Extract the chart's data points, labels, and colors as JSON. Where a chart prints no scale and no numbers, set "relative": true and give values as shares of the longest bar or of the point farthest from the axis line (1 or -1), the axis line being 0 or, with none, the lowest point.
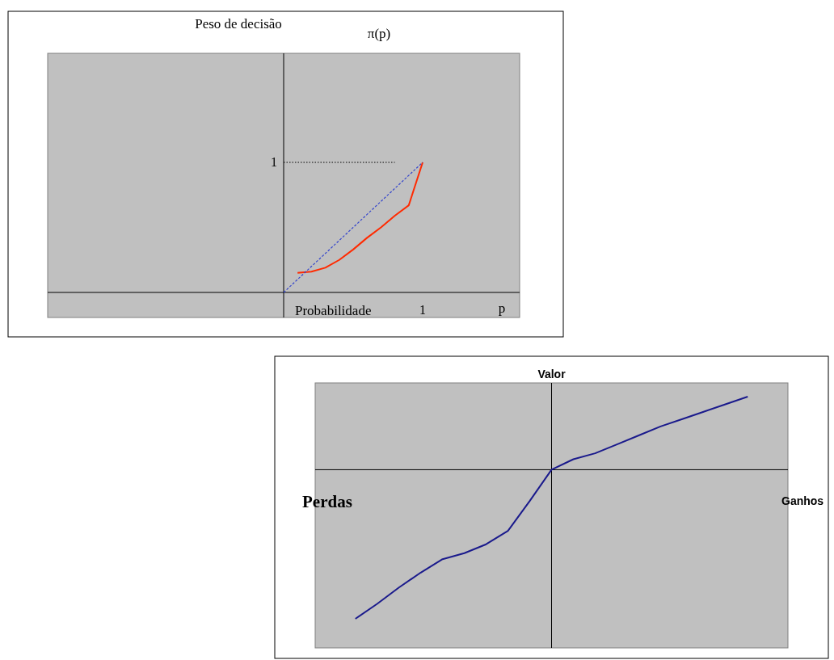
{
  "chart_data": [
    {
      "type": "line",
      "relative": true,
      "title": "Peso de decisão",
      "ylabel": "π(p)",
      "xlabel": "Probabilidade",
      "x2label": "p",
      "annotations": [
        "1",
        "1"
      ],
      "marker": "none",
      "categories": [
        null,
        null,
        null,
        null,
        null,
        null,
        null,
        null,
        null,
        null,
        null
      ],
      "series": [
        {
          "values": [
            null,
            0.15,
            0.16,
            0.19,
            0.25,
            0.33,
            0.42,
            0.5,
            0.59,
            0.67,
            1.0
          ],
          "color": "#ff2a00",
          "line_style": "solid"
        },
        {
          "values": [
            0,
            0.1,
            0.2,
            0.3,
            0.4,
            0.5,
            0.6,
            0.7,
            0.8,
            0.9,
            1.0
          ],
          "color": "#3344cc",
          "line_style": "dashed"
        },
        {
          "values": [
            1.0,
            1.0,
            1.0,
            1.0,
            1.0,
            1.0,
            1.0,
            1.0,
            1.0,
            null,
            null
          ],
          "color": "#000000",
          "line_style": "dotted"
        }
      ]
    },
    {
      "type": "line",
      "relative": true,
      "ylabel": "Valor",
      "annotations": [
        "Perdas",
        "Ganhos"
      ],
      "marker": "none",
      "categories": [
        null,
        null,
        null,
        null,
        null,
        null,
        null,
        null,
        null,
        null,
        null,
        null,
        null,
        null,
        null,
        null,
        null,
        null,
        null
      ],
      "series": [
        {
          "values": [
            -1,
            -0.9,
            -0.79,
            -0.69,
            -0.6,
            -0.56,
            -0.5,
            -0.41,
            -0.21,
            0,
            0.07,
            0.11,
            0.17,
            0.23,
            0.29,
            0.34,
            0.39,
            0.44,
            0.49
          ],
          "color": "#1a1a8c",
          "line_style": "solid"
        }
      ]
    }
  ]
}
